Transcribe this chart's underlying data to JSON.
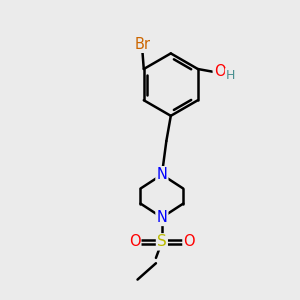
{
  "bg_color": "#ebebeb",
  "bond_color": "#000000",
  "bond_width": 1.8,
  "atoms": {
    "Br": {
      "color": "#cc6600",
      "fontsize": 10.5
    },
    "N": {
      "color": "#0000ff",
      "fontsize": 10.5
    },
    "O_red": {
      "color": "#ff0000",
      "fontsize": 10.5
    },
    "O_teal": {
      "color": "#008080",
      "fontsize": 10.5
    },
    "S": {
      "color": "#bbbb00",
      "fontsize": 11
    },
    "H": {
      "color": "#4a9090",
      "fontsize": 9
    }
  },
  "figsize": [
    3.0,
    3.0
  ],
  "dpi": 100,
  "xlim": [
    0,
    10
  ],
  "ylim": [
    0,
    10
  ]
}
